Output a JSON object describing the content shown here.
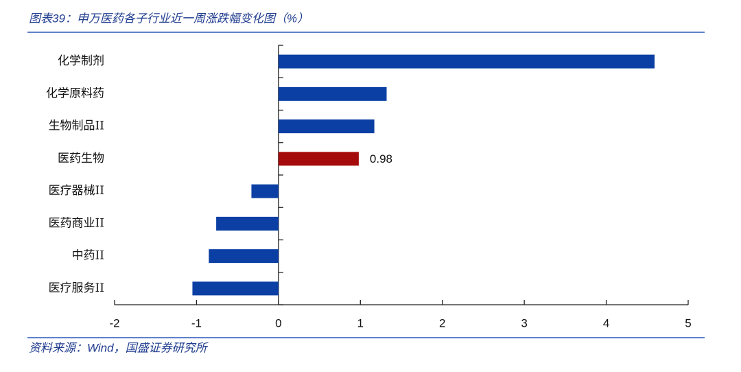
{
  "chart_data": {
    "type": "hbar",
    "title": "图表39：申万医药各子行业近一周涨跌幅变化图（%）",
    "source": "资料来源：Wind，国盛证券研究所",
    "categories": [
      "化学制剂",
      "化学原料药",
      "生物制品II",
      "医药生物",
      "医疗器械II",
      "医药商业II",
      "中药II",
      "医疗服务II"
    ],
    "values": [
      4.59,
      1.32,
      1.17,
      0.98,
      -0.33,
      -0.76,
      -0.85,
      -1.05
    ],
    "colors": [
      "#0b3fa4",
      "#0b3fa4",
      "#0b3fa4",
      "#a50b0b",
      "#0b3fa4",
      "#0b3fa4",
      "#0b3fa4",
      "#0b3fa4"
    ],
    "show_value_label": [
      false,
      false,
      false,
      true,
      false,
      false,
      false,
      false
    ],
    "xlim": [
      -2,
      5
    ],
    "xticks": [
      -2,
      -1,
      0,
      1,
      2,
      3,
      4,
      5
    ],
    "grid": false
  }
}
